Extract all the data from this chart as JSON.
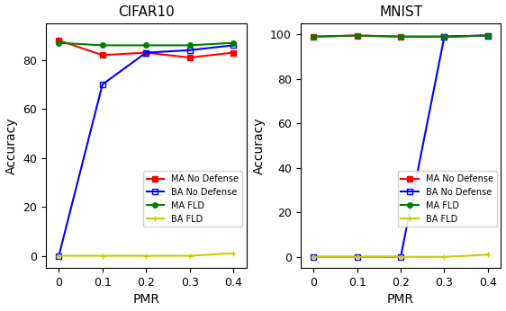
{
  "cifar10": {
    "title": "CIFAR10",
    "pmr": [
      0,
      0.1,
      0.2,
      0.3,
      0.4
    ],
    "ma_no_defense": [
      88,
      82,
      83,
      81,
      83
    ],
    "ba_no_defense": [
      0,
      70,
      83,
      84,
      86
    ],
    "ma_fld": [
      87,
      86,
      86,
      86,
      87
    ],
    "ba_fld": [
      0,
      0,
      0,
      0,
      1
    ]
  },
  "mnist": {
    "title": "MNIST",
    "pmr": [
      0,
      0.1,
      0.2,
      0.3,
      0.4
    ],
    "ma_no_defense": [
      99,
      99.5,
      99,
      99,
      99.5
    ],
    "ba_no_defense": [
      0,
      0,
      0,
      99,
      99.5
    ],
    "ma_fld": [
      99,
      99.5,
      99,
      99,
      99.5
    ],
    "ba_fld": [
      0,
      0,
      0,
      0,
      1
    ]
  },
  "colors": {
    "ma_no_defense": "#FF0000",
    "ba_no_defense": "#0000FF",
    "ma_fld": "#008000",
    "ba_fld": "#CCCC00"
  },
  "markers": {
    "ma_no_defense": "s",
    "ba_no_defense": "s",
    "ma_fld": "o",
    "ba_fld": "+"
  },
  "legend_labels": [
    "MA No Defense",
    "BA No Defense",
    "MA FLD",
    "BA FLD"
  ],
  "xlabel": "PMR",
  "ylabel": "Accuracy",
  "cifar10_ylim": [
    -5,
    95
  ],
  "cifar10_yticks": [
    0,
    20,
    40,
    60,
    80
  ],
  "mnist_ylim": [
    -5,
    105
  ],
  "mnist_yticks": [
    0,
    20,
    40,
    60,
    80,
    100
  ],
  "xtick_labels": [
    "0",
    "0.1",
    "0.2",
    "0.3",
    "0.4"
  ]
}
